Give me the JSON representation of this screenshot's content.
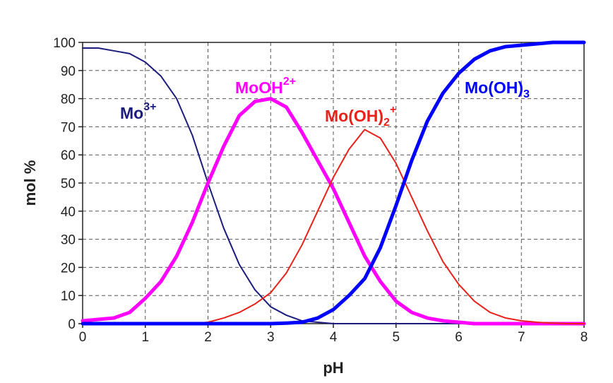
{
  "chart_data": {
    "type": "line",
    "xlabel": "pH",
    "ylabel": "mol %",
    "x": [
      0,
      0.25,
      0.5,
      0.75,
      1,
      1.25,
      1.5,
      1.75,
      2,
      2.25,
      2.5,
      2.75,
      3,
      3.25,
      3.5,
      3.75,
      4,
      4.25,
      4.5,
      4.75,
      5,
      5.25,
      5.5,
      5.75,
      6,
      6.25,
      6.5,
      6.75,
      7,
      7.25,
      7.5,
      7.75,
      8
    ],
    "series": [
      {
        "label": {
          "text": "Mo",
          "sup": "3+"
        },
        "color": "#1c1c7e",
        "width": 2,
        "values": [
          98,
          98,
          97,
          96,
          93,
          88,
          80,
          67,
          50,
          34,
          21,
          12,
          6,
          3,
          1,
          0.5,
          0,
          0,
          0,
          0,
          0,
          0,
          0,
          0,
          0,
          0,
          0,
          0,
          0,
          0,
          0,
          0,
          0
        ]
      },
      {
        "label": {
          "text": "MoOH",
          "sup": "2+"
        },
        "color": "#ff00ff",
        "width": 5,
        "values": [
          1,
          1.5,
          2,
          4,
          9,
          15,
          24,
          36,
          50,
          63,
          74,
          79,
          80,
          77,
          68,
          58,
          48,
          36,
          24,
          15,
          8,
          4,
          2,
          1,
          0.5,
          0,
          0,
          0,
          0,
          0,
          0,
          0,
          0
        ]
      },
      {
        "label": {
          "text": "Mo(OH)",
          "sub": "2",
          "sup": "+"
        },
        "color": "#e8221a",
        "width": 2,
        "values": [
          0,
          0,
          0,
          0,
          0,
          0,
          0,
          0,
          0.5,
          2,
          4,
          7,
          11,
          18,
          28,
          40,
          52,
          62,
          69,
          66,
          57,
          45,
          33,
          22,
          14,
          8,
          4,
          2,
          1,
          0.5,
          0.2,
          0,
          0
        ]
      },
      {
        "label": {
          "text": "Mo(OH)",
          "sub": "3"
        },
        "color": "#0000ff",
        "width": 5,
        "values": [
          0,
          0,
          0,
          0,
          0,
          0,
          0,
          0,
          0,
          0,
          0,
          0,
          0,
          0.2,
          0.5,
          2,
          5,
          10,
          16,
          27,
          42,
          58,
          72,
          82,
          89,
          94,
          97,
          98.5,
          99,
          99.5,
          100,
          100,
          100
        ]
      }
    ],
    "xlim": [
      0,
      8
    ],
    "xticks": [
      0,
      1,
      2,
      3,
      4,
      5,
      6,
      7,
      8
    ],
    "ylim": [
      0,
      100
    ],
    "yticks": [
      0,
      10,
      20,
      30,
      40,
      50,
      60,
      70,
      80,
      90,
      100
    ],
    "grid": true
  }
}
